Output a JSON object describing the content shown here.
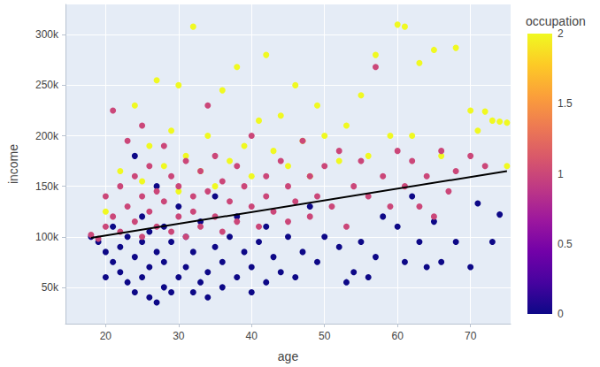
{
  "chart_data": {
    "type": "scatter",
    "x_label": "age",
    "y_label": "income",
    "xlim": [
      14.5,
      75.5
    ],
    "xticks": [
      20,
      30,
      40,
      50,
      60,
      70
    ],
    "ylim": [
      14000,
      330000
    ],
    "yticks": [
      {
        "value": 50000,
        "label": "50k"
      },
      {
        "value": 100000,
        "label": "100k"
      },
      {
        "value": 150000,
        "label": "150k"
      },
      {
        "value": 200000,
        "label": "200k"
      },
      {
        "value": 250000,
        "label": "250k"
      },
      {
        "value": 300000,
        "label": "300k"
      }
    ],
    "grid": true,
    "colorbar": {
      "title": "occupation",
      "range": [
        0,
        2
      ],
      "ticks": [
        0,
        0.5,
        1,
        1.5,
        2
      ]
    },
    "series": [
      {
        "type": "scatter",
        "marker": "circle",
        "occupation": 2,
        "x": [
          20,
          22,
          24,
          25,
          26,
          27,
          28,
          29,
          30,
          30,
          31,
          32,
          33,
          34,
          35,
          36,
          37,
          38,
          39,
          40,
          41,
          42,
          43,
          44,
          45,
          46,
          47,
          48,
          49,
          50,
          52,
          53,
          55,
          56,
          57,
          59,
          60,
          61,
          62,
          63,
          65,
          66,
          68,
          70,
          71,
          72,
          73,
          74,
          75,
          75
        ],
        "values": [
          125000,
          165000,
          230000,
          155000,
          190000,
          255000,
          170000,
          205000,
          250000,
          145000,
          180000,
          308000,
          165000,
          200000,
          150000,
          245000,
          175000,
          268000,
          190000,
          160000,
          215000,
          280000,
          185000,
          220000,
          170000,
          250000,
          195000,
          160000,
          230000,
          200000,
          175000,
          210000,
          240000,
          180000,
          280000,
          200000,
          310000,
          308000,
          200000,
          272000,
          285000,
          180000,
          287000,
          225000,
          205000,
          224000,
          215000,
          214000,
          213000,
          170000
        ]
      },
      {
        "type": "scatter",
        "marker": "circle",
        "occupation": 0,
        "x": [
          18,
          19,
          20,
          20,
          21,
          21,
          22,
          22,
          23,
          23,
          24,
          24,
          24,
          25,
          25,
          25,
          26,
          26,
          26,
          27,
          27,
          27,
          28,
          28,
          28,
          29,
          29,
          30,
          30,
          31,
          31,
          32,
          32,
          33,
          33,
          34,
          34,
          35,
          35,
          36,
          36,
          37,
          38,
          38,
          39,
          40,
          40,
          41,
          42,
          42,
          43,
          44,
          45,
          46,
          47,
          48,
          49,
          50,
          52,
          53,
          54,
          55,
          56,
          57,
          58,
          60,
          61,
          62,
          63,
          64,
          65,
          66,
          68,
          70,
          71,
          74,
          73
        ],
        "values": [
          100000,
          95000,
          60000,
          85000,
          75000,
          110000,
          65000,
          90000,
          55000,
          100000,
          45000,
          80000,
          180000,
          60000,
          95000,
          120000,
          40000,
          70000,
          105000,
          35000,
          85000,
          150000,
          50000,
          75000,
          110000,
          45000,
          95000,
          60000,
          130000,
          70000,
          100000,
          45000,
          85000,
          55000,
          115000,
          65000,
          40000,
          90000,
          140000,
          75000,
          50000,
          100000,
          60000,
          120000,
          85000,
          70000,
          45000,
          95000,
          55000,
          110000,
          80000,
          65000,
          100000,
          60000,
          85000,
          130000,
          75000,
          100000,
          90000,
          55000,
          65000,
          95000,
          60000,
          80000,
          120000,
          110000,
          75000,
          140000,
          95000,
          70000,
          115000,
          75000,
          95000,
          70000,
          133000,
          122000,
          95000
        ]
      },
      {
        "type": "scatter",
        "marker": "circle",
        "occupation": 1,
        "x": [
          18,
          19,
          20,
          20,
          21,
          21,
          22,
          22,
          23,
          23,
          24,
          24,
          25,
          25,
          25,
          26,
          26,
          27,
          27,
          28,
          28,
          29,
          29,
          30,
          30,
          31,
          31,
          32,
          32,
          33,
          33,
          34,
          34,
          35,
          35,
          36,
          36,
          37,
          38,
          38,
          39,
          40,
          40,
          41,
          42,
          42,
          43,
          44,
          45,
          45,
          46,
          47,
          48,
          48,
          49,
          50,
          51,
          52,
          53,
          54,
          55,
          56,
          57,
          58,
          59,
          60,
          61,
          62,
          63,
          64,
          65,
          66,
          67,
          68,
          70,
          72
        ],
        "values": [
          102000,
          98000,
          110000,
          140000,
          120000,
          225000,
          105000,
          150000,
          130000,
          195000,
          115000,
          160000,
          100000,
          140000,
          210000,
          125000,
          170000,
          110000,
          145000,
          135000,
          190000,
          105000,
          160000,
          120000,
          150000,
          100000,
          175000,
          140000,
          125000,
          110000,
          165000,
          145000,
          230000,
          120000,
          180000,
          105000,
          155000,
          135000,
          115000,
          170000,
          150000,
          130000,
          200000,
          110000,
          160000,
          140000,
          125000,
          175000,
          115000,
          150000,
          135000,
          195000,
          120000,
          160000,
          140000,
          170000,
          130000,
          185000,
          110000,
          150000,
          175000,
          140000,
          268000,
          160000,
          130000,
          185000,
          150000,
          175000,
          130000,
          160000,
          120000,
          185000,
          145000,
          165000,
          180000,
          170000
        ]
      },
      {
        "type": "line",
        "color": "#000000",
        "line_style": "solid",
        "x": [
          18,
          75
        ],
        "values": [
          99000,
          165000
        ]
      }
    ]
  }
}
